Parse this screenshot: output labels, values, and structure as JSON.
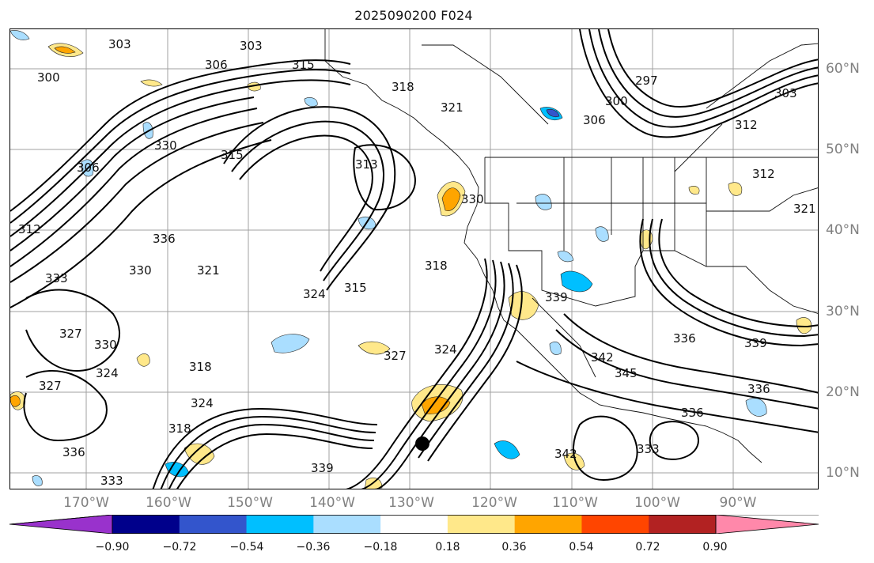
{
  "title": "2025090200 F024",
  "lat_labels": [
    "60°N",
    "50°N",
    "40°N",
    "30°N",
    "20°N",
    "10°N"
  ],
  "lon_labels": [
    "170°W",
    "160°W",
    "150°W",
    "140°W",
    "130°W",
    "120°W",
    "110°W",
    "100°W",
    "90°W"
  ],
  "colorbar": {
    "tick_labels": [
      "−0.90",
      "−0.72",
      "−0.54",
      "−0.36",
      "−0.18",
      "0.18",
      "0.36",
      "0.54",
      "0.72",
      "0.90"
    ],
    "colors": [
      "#9932cc",
      "#00008b",
      "#3355cc",
      "#00bfff",
      "#aadeff",
      "#ffffff",
      "#ffe88a",
      "#ffa500",
      "#ff4500",
      "#b22222",
      "#ff88aa"
    ]
  },
  "contour_labels": [
    "303",
    "306",
    "300",
    "315",
    "303",
    "318",
    "321",
    "300",
    "297",
    "306",
    "303",
    "312",
    "315",
    "330",
    "313",
    "330",
    "306",
    "312",
    "312",
    "321",
    "327",
    "336",
    "333",
    "321",
    "315",
    "318",
    "330",
    "327",
    "330",
    "324",
    "324",
    "318",
    "327",
    "336",
    "333",
    "318",
    "339",
    "333",
    "342",
    "336",
    "339",
    "336",
    "345",
    "342",
    "339",
    "336",
    "324",
    "324"
  ],
  "marker": "storm-center"
}
